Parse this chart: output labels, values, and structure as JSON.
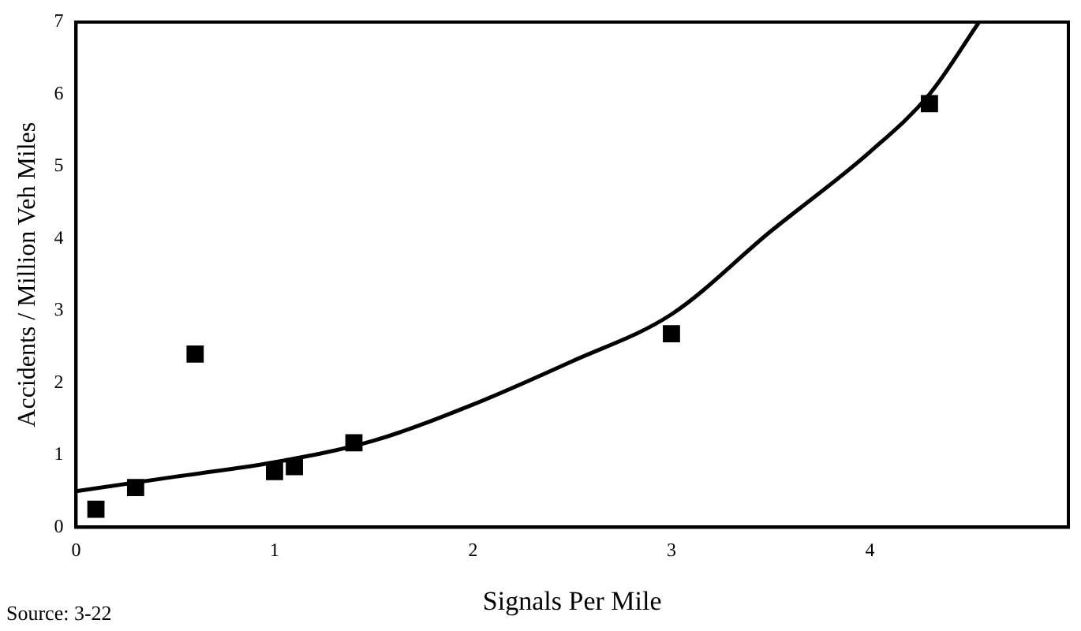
{
  "chart_data": {
    "type": "scatter",
    "xlabel": "Signals Per Mile",
    "ylabel": "Accidents / Million Veh Miles",
    "annotations": [
      "Source: 3-22"
    ],
    "xlim": [
      0,
      5
    ],
    "xticks": [
      0,
      1,
      2,
      3,
      4
    ],
    "ylim": [
      0,
      7
    ],
    "yticks": [
      0,
      1,
      2,
      3,
      4,
      5,
      6,
      7
    ],
    "grid": false,
    "legend": false,
    "series": [
      {
        "type": "scatter",
        "marker": "square",
        "color": "#000000",
        "x": [
          0.1,
          0.3,
          0.6,
          1.0,
          1.1,
          1.4,
          3.0,
          4.3
        ],
        "values": [
          0.25,
          0.55,
          2.4,
          0.77,
          0.84,
          1.17,
          2.68,
          5.87
        ]
      },
      {
        "type": "line",
        "marker": "none",
        "color": "#000000",
        "x": [
          0,
          0.5,
          1,
          1.5,
          2,
          2.5,
          3,
          3.5,
          4,
          4.3,
          4.55
        ],
        "values": [
          0.5,
          0.7,
          0.9,
          1.2,
          1.7,
          2.3,
          2.95,
          4.1,
          5.2,
          6.0,
          7.0
        ]
      }
    ]
  }
}
